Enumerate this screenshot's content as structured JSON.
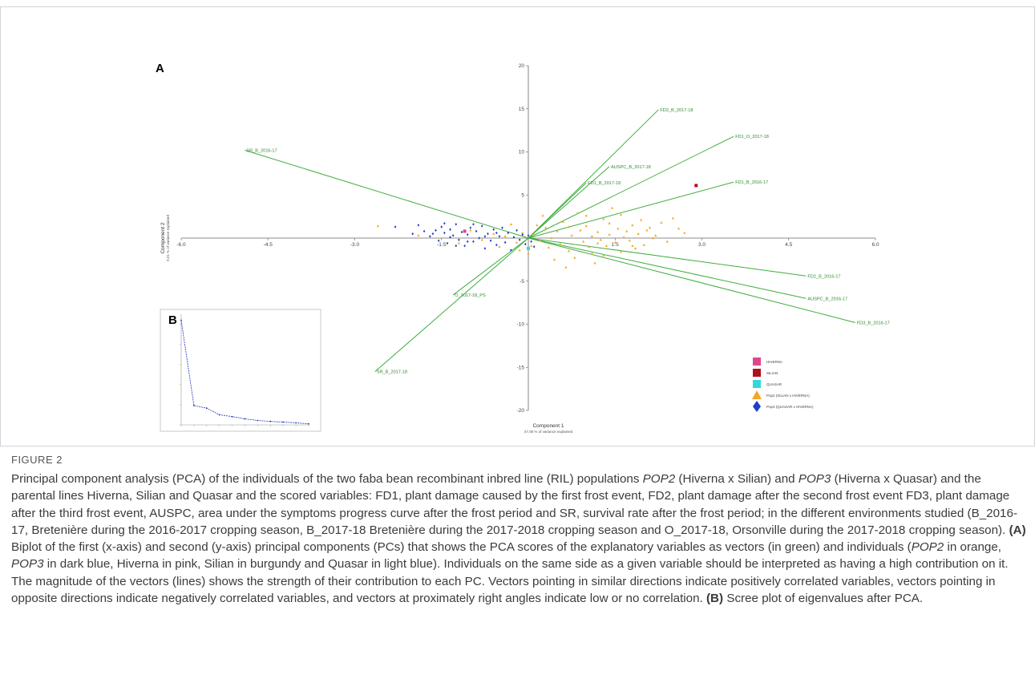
{
  "figure": {
    "panel_a_letter": "A",
    "panel_b_letter": "B",
    "label": "FIGURE 2",
    "caption": {
      "p1": "Principal component analysis (PCA) of the individuals of the two faba bean recombinant inbred line (RIL) populations ",
      "pop2": "POP2",
      "p2": " (Hiverna x Silian) and ",
      "pop3": "POP3",
      "p3": " (Hiverna x Quasar) and the parental lines Hiverna, Silian and Quasar and the scored variables: FD1, plant damage caused by the first frost event, FD2, plant damage after the second frost event FD3, plant damage after the third frost event, AUSPC, area under the symptoms progress curve after the frost period and SR, survival rate after the frost period; in the different environments studied (B_2016-17, Bretenière during the 2016-2017 cropping season, B_2017-18 Bretenière during the 2017-2018 cropping season and O_2017-18, Orsonville during the 2017-2018 cropping season). ",
      "a_tag": "(A)",
      "p4": " Biplot of the first (x-axis) and second (y-axis) principal components (PCs) that shows the PCA scores of the explanatory variables as vectors (in green) and individuals (",
      "pop2b": "POP2",
      "p5": " in orange, ",
      "pop3b": "POP3",
      "p6": " in dark blue, Hiverna in pink, Silian in burgundy and Quasar in light blue). Individuals on the same side as a given variable should be interpreted as having a high contribution on it. The magnitude of the vectors (lines) shows the strength of their contribution to each PC. Vectors pointing in similar directions indicate positively correlated variables, vectors pointing in opposite directions indicate negatively correlated variables, and vectors at proximately right angles indicate low or no correlation. ",
      "b_tag": "(B)",
      "p7": " Scree plot of eigenvalues after PCA."
    }
  },
  "colors": {
    "vector": "#3fae3f",
    "pop2": "#f5a623",
    "pop3": "#1f3fc4",
    "hiverna": "#e0458f",
    "silian": "#b0101a",
    "quasar": "#34d6e0",
    "scree_line": "#2233bb"
  },
  "chart_data": [
    {
      "type": "scatter",
      "title": "",
      "xlabel": "Component 1",
      "xlabel_sub": "47,05 % of variance explained",
      "ylabel": "Component 2",
      "ylabel_sub": "9,21 % of variance explained",
      "xlim": [
        -6.0,
        6.0
      ],
      "ylim": [
        -20,
        20
      ],
      "x_ticks": [
        "-6.0",
        "-4.5",
        "-3.0",
        "-1.5",
        "1.5",
        "3.0",
        "4.5",
        "6.0"
      ],
      "x_tick_values": [
        -6.0,
        -4.5,
        -3.0,
        -1.5,
        1.5,
        3.0,
        4.5,
        6.0
      ],
      "y_ticks": [
        "20",
        "15",
        "10",
        "5",
        "-5",
        "-10",
        "-15",
        "-20"
      ],
      "y_tick_values": [
        20,
        15,
        10,
        5,
        -5,
        -10,
        -15,
        -20
      ],
      "vectors": [
        {
          "label": "FD2_B_2017-18",
          "x": 2.25,
          "y": 14.9
        },
        {
          "label": "FD1_O_2017-18",
          "x": 3.55,
          "y": 11.8
        },
        {
          "label": "AUSPC_B_2017-18",
          "x": 1.4,
          "y": 8.3
        },
        {
          "label": "FD1_B_2017-18",
          "x": 1.0,
          "y": 6.4
        },
        {
          "label": "FD1_B_2016-17",
          "x": 3.55,
          "y": 6.5
        },
        {
          "label": "SR_B_2016-17",
          "x": -4.9,
          "y": 10.2
        },
        {
          "label": "FD2_B_2016-17",
          "x": 4.8,
          "y": -4.4
        },
        {
          "label": "AUSPC_B_2016-17",
          "x": 4.8,
          "y": -7.0
        },
        {
          "label": "FD3_B_2016-17",
          "x": 5.65,
          "y": -9.8
        },
        {
          "label": "O_2017-18_PS",
          "x": -1.3,
          "y": -6.6
        },
        {
          "label": "SR_B_2017-18",
          "x": -2.65,
          "y": -15.5
        }
      ],
      "series": [
        {
          "name": "HIVERNA",
          "marker": "square",
          "points": [
            [
              -1.1,
              0.8
            ]
          ]
        },
        {
          "name": "SILIAN",
          "marker": "square",
          "points": [
            [
              2.9,
              6.1
            ]
          ]
        },
        {
          "name": "QUASAR",
          "marker": "square",
          "points": [
            [
              0.0,
              -1.2
            ]
          ]
        },
        {
          "name": "Pop2 (SILIAN x HIVERNA)",
          "marker": "triangle",
          "points": [
            [
              -2.6,
              1.4
            ],
            [
              -1.9,
              0.3
            ],
            [
              -1.2,
              -0.6
            ],
            [
              -1.0,
              0.9
            ],
            [
              -0.8,
              -0.2
            ],
            [
              -0.6,
              0.5
            ],
            [
              -0.5,
              -1.0
            ],
            [
              -0.4,
              0.2
            ],
            [
              -0.3,
              1.6
            ],
            [
              -0.2,
              -0.5
            ],
            [
              -0.1,
              0.6
            ],
            [
              0.0,
              -1.8
            ],
            [
              0.1,
              0.4
            ],
            [
              0.2,
              -0.3
            ],
            [
              0.3,
              1.2
            ],
            [
              0.35,
              -1.1
            ],
            [
              0.4,
              0.0
            ],
            [
              0.5,
              0.8
            ],
            [
              0.55,
              -0.7
            ],
            [
              0.6,
              1.9
            ],
            [
              0.7,
              -1.5
            ],
            [
              0.75,
              0.3
            ],
            [
              0.8,
              -2.3
            ],
            [
              0.9,
              0.9
            ],
            [
              0.95,
              -0.4
            ],
            [
              1.0,
              1.4
            ],
            [
              1.05,
              -1.0
            ],
            [
              1.1,
              0.2
            ],
            [
              1.15,
              -2.9
            ],
            [
              1.2,
              0.7
            ],
            [
              1.25,
              -0.2
            ],
            [
              1.3,
              2.2
            ],
            [
              1.35,
              -0.9
            ],
            [
              1.4,
              0.4
            ],
            [
              1.45,
              3.5
            ],
            [
              1.5,
              -0.5
            ],
            [
              1.55,
              1.1
            ],
            [
              1.6,
              -1.6
            ],
            [
              1.65,
              0.1
            ],
            [
              1.7,
              0.8
            ],
            [
              1.75,
              -0.3
            ],
            [
              1.8,
              1.5
            ],
            [
              1.85,
              -1.2
            ],
            [
              1.9,
              0.5
            ],
            [
              1.95,
              2.1
            ],
            [
              2.0,
              -0.8
            ],
            [
              2.05,
              0.9
            ],
            [
              2.1,
              1.2
            ],
            [
              2.2,
              0.3
            ],
            [
              2.3,
              1.8
            ],
            [
              2.4,
              -0.4
            ],
            [
              2.5,
              2.3
            ],
            [
              2.6,
              1.1
            ],
            [
              2.7,
              0.6
            ],
            [
              0.25,
              2.6
            ],
            [
              0.65,
              -3.4
            ],
            [
              1.0,
              2.6
            ],
            [
              1.3,
              -2.0
            ],
            [
              0.45,
              -2.5
            ],
            [
              0.85,
              2.9
            ],
            [
              0.15,
              1.5
            ],
            [
              1.6,
              2.7
            ],
            [
              -0.15,
              -1.4
            ],
            [
              0.05,
              -0.9
            ],
            [
              1.2,
              -0.6
            ],
            [
              1.8,
              -0.9
            ],
            [
              2.15,
              0.0
            ],
            [
              0.7,
              1.3
            ],
            [
              1.4,
              1.7
            ],
            [
              1.1,
              -1.8
            ]
          ]
        },
        {
          "name": "Pop3 (QUASAR x HIVERNA)",
          "marker": "diamond",
          "points": [
            [
              -2.3,
              1.3
            ],
            [
              -2.0,
              0.5
            ],
            [
              -1.9,
              1.5
            ],
            [
              -1.8,
              0.8
            ],
            [
              -1.7,
              0.2
            ],
            [
              -1.6,
              0.9
            ],
            [
              -1.55,
              -0.3
            ],
            [
              -1.5,
              1.3
            ],
            [
              -1.45,
              0.6
            ],
            [
              -1.4,
              -0.6
            ],
            [
              -1.35,
              1.0
            ],
            [
              -1.3,
              0.3
            ],
            [
              -1.25,
              1.6
            ],
            [
              -1.2,
              -0.2
            ],
            [
              -1.15,
              0.7
            ],
            [
              -1.1,
              -0.9
            ],
            [
              -1.05,
              0.4
            ],
            [
              -1.0,
              1.2
            ],
            [
              -0.95,
              -0.4
            ],
            [
              -0.9,
              0.8
            ],
            [
              -0.85,
              0.0
            ],
            [
              -0.8,
              1.4
            ],
            [
              -0.75,
              -1.2
            ],
            [
              -0.7,
              0.5
            ],
            [
              -0.65,
              -0.3
            ],
            [
              -0.6,
              1.0
            ],
            [
              -0.55,
              -0.8
            ],
            [
              -0.5,
              0.2
            ],
            [
              -0.45,
              1.2
            ],
            [
              -0.4,
              -0.5
            ],
            [
              -0.35,
              0.6
            ],
            [
              -0.3,
              -1.4
            ],
            [
              -0.25,
              0.1
            ],
            [
              -0.2,
              0.9
            ],
            [
              -0.15,
              -0.2
            ],
            [
              -0.1,
              0.4
            ],
            [
              -0.05,
              -0.7
            ],
            [
              0.0,
              0.3
            ],
            [
              0.05,
              -0.4
            ],
            [
              0.1,
              -1.0
            ],
            [
              -1.45,
              1.7
            ],
            [
              -1.25,
              -0.9
            ],
            [
              -0.95,
              1.6
            ],
            [
              -0.75,
              0.2
            ],
            [
              -0.55,
              0.6
            ],
            [
              -1.65,
              0.5
            ],
            [
              -1.35,
              0.1
            ],
            [
              -1.05,
              -0.4
            ]
          ]
        }
      ],
      "legend": [
        "HIVERNA",
        "SILIAN",
        "QUASAR",
        "Pop2 (SILIAN x HIVERNA)",
        "Pop3 (QUASAR x HIVERNA)"
      ],
      "legend_position": "bottom-right",
      "grid": false
    },
    {
      "type": "line",
      "title": "",
      "x": [
        1,
        2,
        3,
        4,
        5,
        6,
        7,
        8,
        9,
        10,
        11
      ],
      "values": [
        5.2,
        0.96,
        0.83,
        0.5,
        0.41,
        0.3,
        0.22,
        0.17,
        0.14,
        0.1,
        0.05
      ],
      "ylim": [
        0,
        5.5
      ],
      "grid": false
    }
  ]
}
